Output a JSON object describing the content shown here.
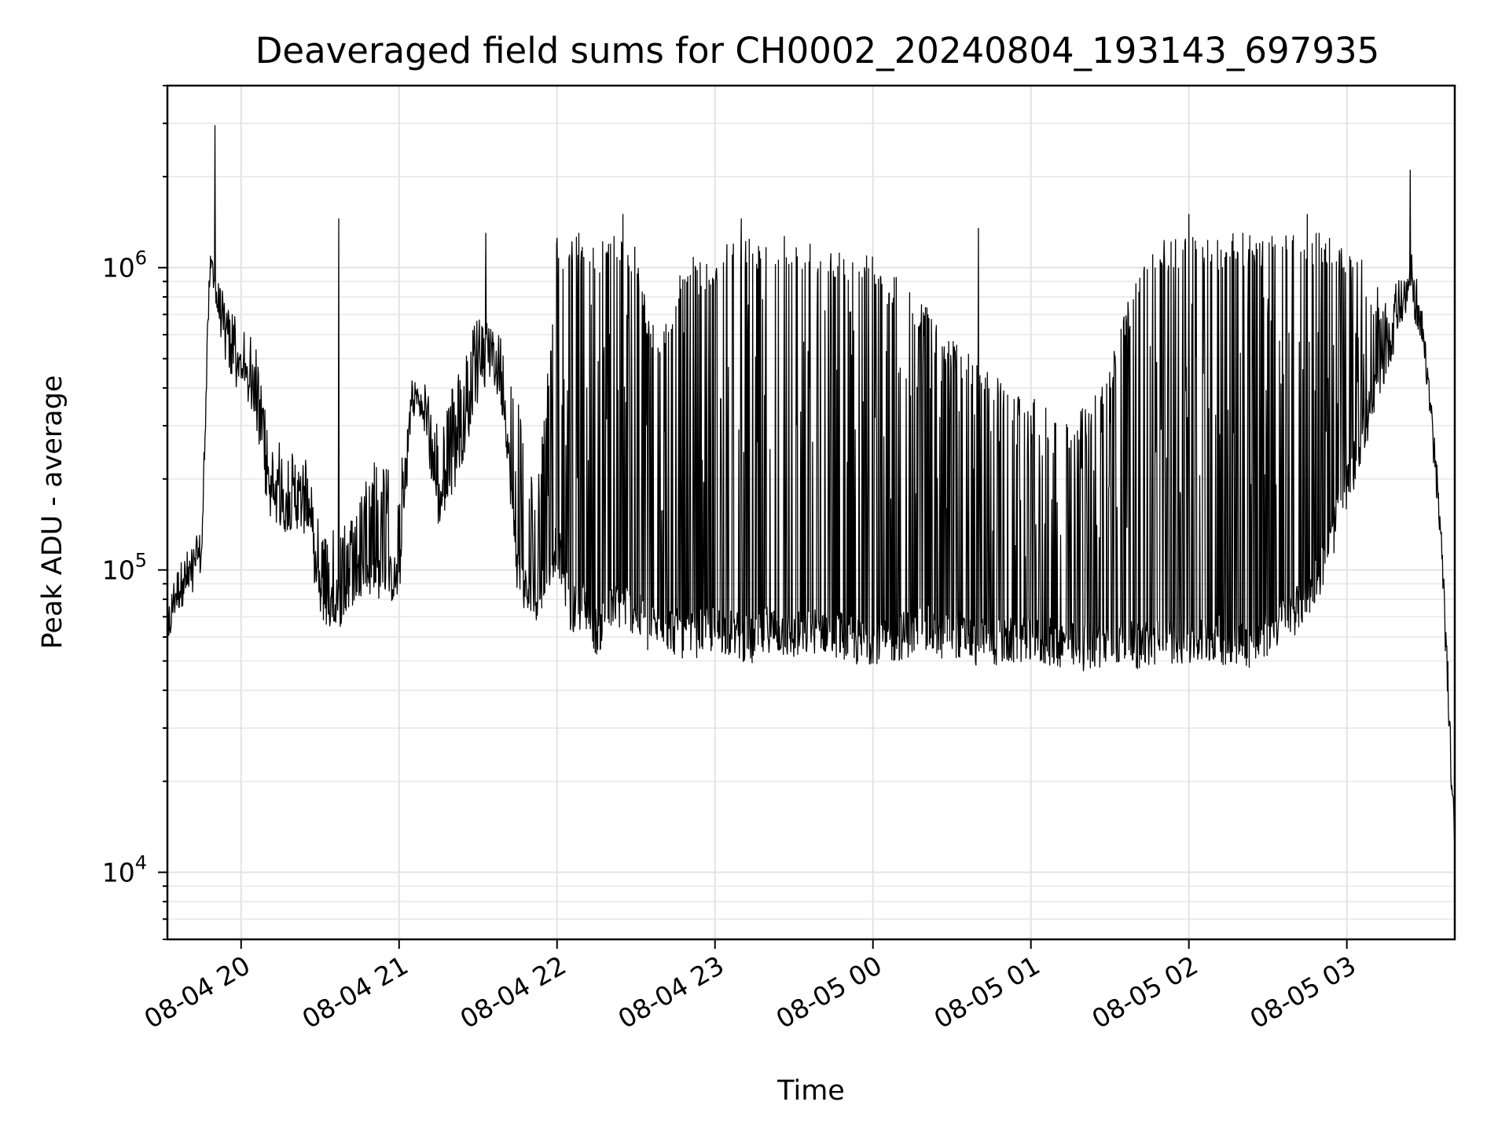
{
  "chart_data": {
    "type": "line",
    "title": "Deaveraged field sums for CH0002_20240804_193143_697935",
    "xlabel": "Time",
    "ylabel": "Peak ADU - average",
    "yscale": "log",
    "xlim": [
      "2024-08-04 19:32",
      "2024-08-05 03:41"
    ],
    "ylim": [
      6000,
      4000000
    ],
    "grid": true,
    "x_ticks": [
      {
        "value": "2024-08-04 20:00",
        "label": "08-04 20"
      },
      {
        "value": "2024-08-04 21:00",
        "label": "08-04 21"
      },
      {
        "value": "2024-08-04 22:00",
        "label": "08-04 22"
      },
      {
        "value": "2024-08-04 23:00",
        "label": "08-04 23"
      },
      {
        "value": "2024-08-05 00:00",
        "label": "08-05 00"
      },
      {
        "value": "2024-08-05 01:00",
        "label": "08-05 01"
      },
      {
        "value": "2024-08-05 02:00",
        "label": "08-05 02"
      },
      {
        "value": "2024-08-05 03:00",
        "label": "08-05 03"
      }
    ],
    "y_ticks": [
      {
        "value": 10000,
        "base": "10",
        "exp": "4"
      },
      {
        "value": 100000,
        "base": "10",
        "exp": "5"
      },
      {
        "value": 1000000,
        "base": "10",
        "exp": "6"
      }
    ],
    "series": [
      {
        "color": "#000000",
        "x": [
          "2024-08-04 19:32",
          "2024-08-04 19:35",
          "2024-08-04 19:40",
          "2024-08-04 19:45",
          "2024-08-04 19:48",
          "2024-08-04 19:52",
          "2024-08-04 19:55",
          "2024-08-04 20:00",
          "2024-08-04 20:05",
          "2024-08-04 20:10",
          "2024-08-04 20:15",
          "2024-08-04 20:20",
          "2024-08-04 20:25",
          "2024-08-04 20:30",
          "2024-08-04 20:35",
          "2024-08-04 20:40",
          "2024-08-04 20:45",
          "2024-08-04 20:50",
          "2024-08-04 20:55",
          "2024-08-04 21:00",
          "2024-08-04 21:05",
          "2024-08-04 21:10",
          "2024-08-04 21:15",
          "2024-08-04 21:20",
          "2024-08-04 21:25",
          "2024-08-04 21:30",
          "2024-08-04 21:35",
          "2024-08-04 21:40",
          "2024-08-04 21:45",
          "2024-08-04 21:50",
          "2024-08-04 21:55",
          "2024-08-04 22:00",
          "2024-08-04 22:05",
          "2024-08-04 22:10",
          "2024-08-04 22:15",
          "2024-08-04 22:20",
          "2024-08-04 22:25",
          "2024-08-04 22:30",
          "2024-08-04 22:35",
          "2024-08-04 22:40",
          "2024-08-04 22:45",
          "2024-08-04 22:50",
          "2024-08-04 22:55",
          "2024-08-04 23:00",
          "2024-08-04 23:05",
          "2024-08-04 23:10",
          "2024-08-04 23:15",
          "2024-08-04 23:20",
          "2024-08-04 23:25",
          "2024-08-04 23:30",
          "2024-08-04 23:35",
          "2024-08-04 23:40",
          "2024-08-04 23:45",
          "2024-08-04 23:50",
          "2024-08-04 23:55",
          "2024-08-05 00:00",
          "2024-08-05 00:05",
          "2024-08-05 00:10",
          "2024-08-05 00:15",
          "2024-08-05 00:20",
          "2024-08-05 00:25",
          "2024-08-05 00:30",
          "2024-08-05 00:35",
          "2024-08-05 00:40",
          "2024-08-05 00:45",
          "2024-08-05 00:50",
          "2024-08-05 00:55",
          "2024-08-05 01:00",
          "2024-08-05 01:05",
          "2024-08-05 01:10",
          "2024-08-05 01:15",
          "2024-08-05 01:20",
          "2024-08-05 01:25",
          "2024-08-05 01:30",
          "2024-08-05 01:35",
          "2024-08-05 01:40",
          "2024-08-05 01:45",
          "2024-08-05 01:50",
          "2024-08-05 01:55",
          "2024-08-05 02:00",
          "2024-08-05 02:05",
          "2024-08-05 02:10",
          "2024-08-05 02:15",
          "2024-08-05 02:20",
          "2024-08-05 02:25",
          "2024-08-05 02:30",
          "2024-08-05 02:35",
          "2024-08-05 02:40",
          "2024-08-05 02:45",
          "2024-08-05 02:50",
          "2024-08-05 02:55",
          "2024-08-05 03:00",
          "2024-08-05 03:05",
          "2024-08-05 03:10",
          "2024-08-05 03:15",
          "2024-08-05 03:20",
          "2024-08-05 03:25",
          "2024-08-05 03:30",
          "2024-08-05 03:35",
          "2024-08-05 03:38",
          "2024-08-05 03:41"
        ],
        "base": [
          60000,
          80000,
          95000,
          110000,
          900000,
          700000,
          500000,
          420000,
          380000,
          180000,
          150000,
          160000,
          150000,
          80000,
          70000,
          80000,
          95000,
          95000,
          90000,
          90000,
          380000,
          300000,
          160000,
          200000,
          280000,
          420000,
          500000,
          350000,
          95000,
          75000,
          85000,
          120000,
          70000,
          75000,
          60000,
          70000,
          75000,
          70000,
          60000,
          65000,
          60000,
          58000,
          60000,
          62000,
          60000,
          58000,
          55000,
          62000,
          60000,
          58000,
          60000,
          62000,
          60000,
          58000,
          55000,
          57000,
          56000,
          58000,
          60000,
          62000,
          58000,
          60000,
          58000,
          55000,
          56000,
          55000,
          57000,
          55000,
          56000,
          55000,
          54000,
          53000,
          55000,
          56000,
          55000,
          54000,
          55000,
          56000,
          57000,
          55000,
          56000,
          58000,
          55000,
          56000,
          54000,
          60000,
          65000,
          70000,
          80000,
          95000,
          130000,
          180000,
          250000,
          350000,
          500000,
          700000,
          900000,
          500000,
          150000,
          50000,
          11000
        ],
        "peak": [
          75000,
          90000,
          105000,
          120000,
          1200000,
          950000,
          750000,
          650000,
          600000,
          300000,
          260000,
          250000,
          240000,
          150000,
          140000,
          150000,
          170000,
          230000,
          220000,
          200000,
          420000,
          420000,
          300000,
          400000,
          560000,
          680000,
          650000,
          600000,
          400000,
          200000,
          300000,
          1300000,
          1300000,
          1300000,
          1250000,
          1300000,
          1300000,
          1200000,
          700000,
          600000,
          900000,
          1100000,
          1050000,
          1150000,
          1200000,
          1250000,
          1300000,
          1300000,
          1300000,
          1300000,
          1250000,
          1200000,
          1200000,
          1200000,
          1150000,
          1100000,
          1000000,
          950000,
          850000,
          750000,
          650000,
          600000,
          550000,
          500000,
          450000,
          420000,
          400000,
          380000,
          350000,
          330000,
          320000,
          350000,
          400000,
          500000,
          700000,
          900000,
          1150000,
          1250000,
          1300000,
          1300000,
          1300000,
          1250000,
          1300000,
          1300000,
          1300000,
          1300000,
          1300000,
          1300000,
          1300000,
          1300000,
          1300000,
          1200000,
          1100000,
          900000,
          800000,
          1000000,
          950000,
          600000,
          180000,
          60000,
          13000
        ]
      }
    ],
    "spikes": [
      {
        "x": "2024-08-04 19:50",
        "y": 2950000
      },
      {
        "x": "2024-08-04 20:37",
        "y": 1450000
      },
      {
        "x": "2024-08-04 21:33",
        "y": 1300000
      },
      {
        "x": "2024-08-04 22:25",
        "y": 1500000
      },
      {
        "x": "2024-08-04 23:10",
        "y": 1450000
      },
      {
        "x": "2024-08-05 00:40",
        "y": 1350000
      },
      {
        "x": "2024-08-05 02:00",
        "y": 1500000
      },
      {
        "x": "2024-08-05 02:45",
        "y": 1500000
      },
      {
        "x": "2024-08-05 03:24",
        "y": 2100000
      }
    ]
  }
}
